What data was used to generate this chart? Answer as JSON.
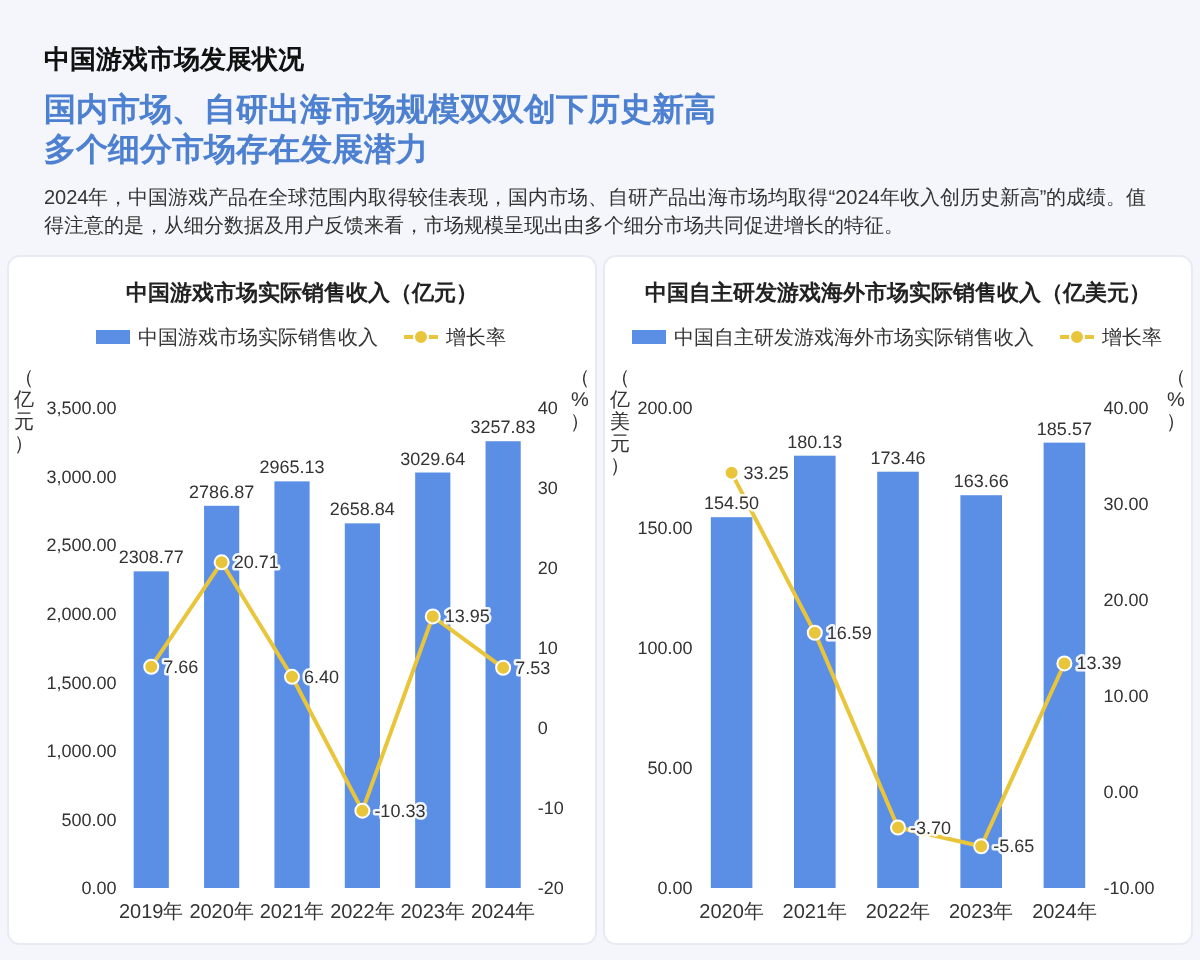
{
  "chart_data": [
    {
      "type": "other",
      "title": "中国游戏市场发展状况",
      "subtitle": "国内市场、自研出海市场规模双双创下历史新高多个细分市场存在发展潜力",
      "annotations": [
        "2024年，中国游戏产品在全球范围内取得较佳表现，国内市场、自研产品出海市场均取得“2024年收入创历史新高”的成绩。值得注意的是，从细分数据及用户反馈来看，市场规模呈现出由多个细分市场共同促进增长的特征。"
      ]
    },
    {
      "type": "bar",
      "title": "中国游戏市场实际销售收入（亿元）",
      "categories": [
        "2019年",
        "2020年",
        "2021年",
        "2022年",
        "2023年",
        "2024年"
      ],
      "series": [
        {
          "name": "中国游戏市场实际销售收入",
          "type": "bar",
          "color": "#5b8fe6",
          "values": [
            2308.77,
            2786.87,
            2965.13,
            2658.84,
            3029.64,
            3257.83
          ],
          "value_labels": [
            "2308.77",
            "2786.87",
            "2965.13",
            "2658.84",
            "3029.64",
            "3257.83"
          ]
        },
        {
          "name": "增长率",
          "type": "line",
          "axis": "y2",
          "color": "#e8c53a",
          "values": [
            7.66,
            20.71,
            6.4,
            -10.33,
            13.95,
            7.53
          ],
          "value_labels": [
            "7.66",
            "20.71",
            "6.40",
            "-10.33",
            "13.95",
            "7.53"
          ]
        }
      ],
      "ylabel": "（亿元）",
      "y2label": "（%）",
      "ylim": [
        0,
        3500
      ],
      "yticks": [
        {
          "value": 0,
          "label": "0.00"
        },
        {
          "value": 500,
          "label": "500.00"
        },
        {
          "value": 1000,
          "label": "1,000.00"
        },
        {
          "value": 1500,
          "label": "1,500.00"
        },
        {
          "value": 2000,
          "label": "2,000.00"
        },
        {
          "value": 2500,
          "label": "2,500.00"
        },
        {
          "value": 3000,
          "label": "3,000.00"
        },
        {
          "value": 3500,
          "label": "3,500.00"
        }
      ],
      "y2lim": [
        -20,
        40
      ],
      "y2ticks": [
        -20,
        -10,
        0,
        10,
        20,
        30,
        40
      ],
      "legend": "top",
      "marker": "circle"
    },
    {
      "type": "bar",
      "title": "中国自主研发游戏海外市场实际销售收入（亿美元）",
      "categories": [
        "2020年",
        "2021年",
        "2022年",
        "2023年",
        "2024年"
      ],
      "series": [
        {
          "name": "中国自主研发游戏海外市场实际销售收入",
          "type": "bar",
          "color": "#5b8fe6",
          "values": [
            154.5,
            180.13,
            173.46,
            163.66,
            185.57
          ],
          "value_labels": [
            "154.50",
            "180.13",
            "173.46",
            "163.66",
            "185.57"
          ]
        },
        {
          "name": "增长率",
          "type": "line",
          "axis": "y2",
          "color": "#e8c53a",
          "values": [
            33.25,
            16.59,
            -3.7,
            -5.65,
            13.39
          ],
          "value_labels": [
            "33.25",
            "16.59",
            "-3.70",
            "-5.65",
            "13.39"
          ]
        }
      ],
      "ylabel": "（亿美元）",
      "y2label": "（%）",
      "ylim": [
        0,
        200
      ],
      "yticks": [
        {
          "value": 0,
          "label": "0.00"
        },
        {
          "value": 50,
          "label": "50.00"
        },
        {
          "value": 100,
          "label": "100.00"
        },
        {
          "value": 150,
          "label": "150.00"
        },
        {
          "value": 200,
          "label": "200.00"
        }
      ],
      "y2lim": [
        -10,
        40
      ],
      "y2ticks": [
        {
          "value": -10,
          "label": "-10.00"
        },
        {
          "value": 0,
          "label": "0.00"
        },
        {
          "value": 10,
          "label": "10.00"
        },
        {
          "value": 20,
          "label": "20.00"
        },
        {
          "value": 30,
          "label": "30.00"
        },
        {
          "value": 40,
          "label": "40.00"
        }
      ],
      "legend": "top",
      "marker": "circle"
    }
  ]
}
